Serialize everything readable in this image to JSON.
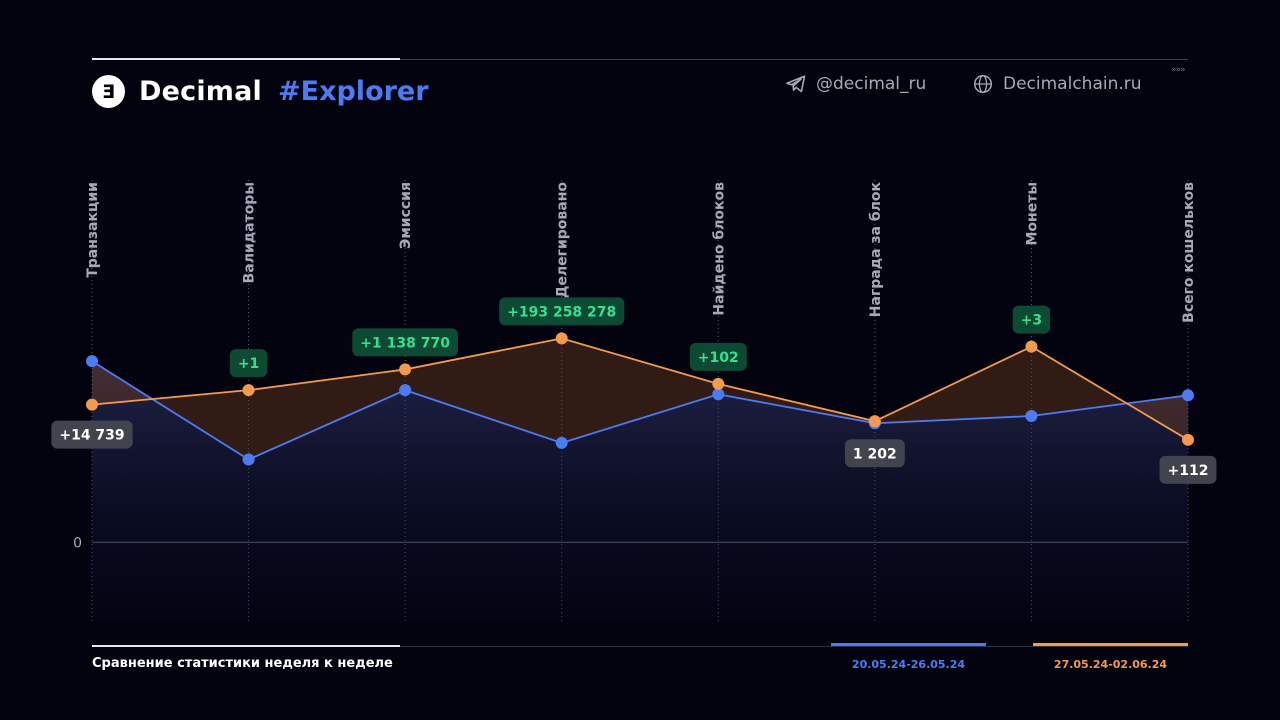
{
  "header": {
    "logo_glyph": "Ǝ",
    "brand": "Decimal",
    "brand_accent": "#Explorer",
    "telegram": "@decimal_ru",
    "website": "Decimalchain.ru",
    "arrows": "»»»"
  },
  "footer": {
    "subtitle": "Сравнение статистики неделя к неделе"
  },
  "colors": {
    "background": "#02030f",
    "blue": "#4b7cf5",
    "orange": "#f39a4c",
    "badge_green_bg": "#0c4a33",
    "badge_green_text": "#35e08f",
    "badge_gray_bg": "#41444f"
  },
  "chart_data": {
    "type": "line",
    "categories": [
      "Транзакции",
      "Валидаторы",
      "Эмиссия",
      "Делегировано",
      "Найдено блоков",
      "Награда за блок",
      "Монеты",
      "Всего кошельков"
    ],
    "series": [
      {
        "name": "20.05.24-26.05.24",
        "color": "#4b7cf5",
        "values": [
          1.75,
          0.8,
          1.47,
          0.96,
          1.43,
          1.15,
          1.22,
          1.42
        ]
      },
      {
        "name": "27.05.24-02.06.24",
        "color": "#f39a4c",
        "values": [
          1.33,
          1.47,
          1.67,
          1.97,
          1.53,
          1.17,
          1.89,
          0.99
        ]
      }
    ],
    "annotations": [
      {
        "category": "Транзакции",
        "text": "+14 739",
        "style": "gray"
      },
      {
        "category": "Валидаторы",
        "text": "+1",
        "style": "green"
      },
      {
        "category": "Эмиссия",
        "text": "+1 138 770",
        "style": "green"
      },
      {
        "category": "Делегировано",
        "text": "+193 258 278",
        "style": "green"
      },
      {
        "category": "Найдено блоков",
        "text": "+102",
        "style": "green"
      },
      {
        "category": "Награда за блок",
        "text": "1 202",
        "style": "gray"
      },
      {
        "category": "Монеты",
        "text": "+3",
        "style": "green"
      },
      {
        "category": "Всего кошельков",
        "text": "+112",
        "style": "gray"
      }
    ],
    "y_tick_labels": [
      "0"
    ],
    "ylim": [
      -0.77,
      3.5
    ],
    "grid": true
  }
}
